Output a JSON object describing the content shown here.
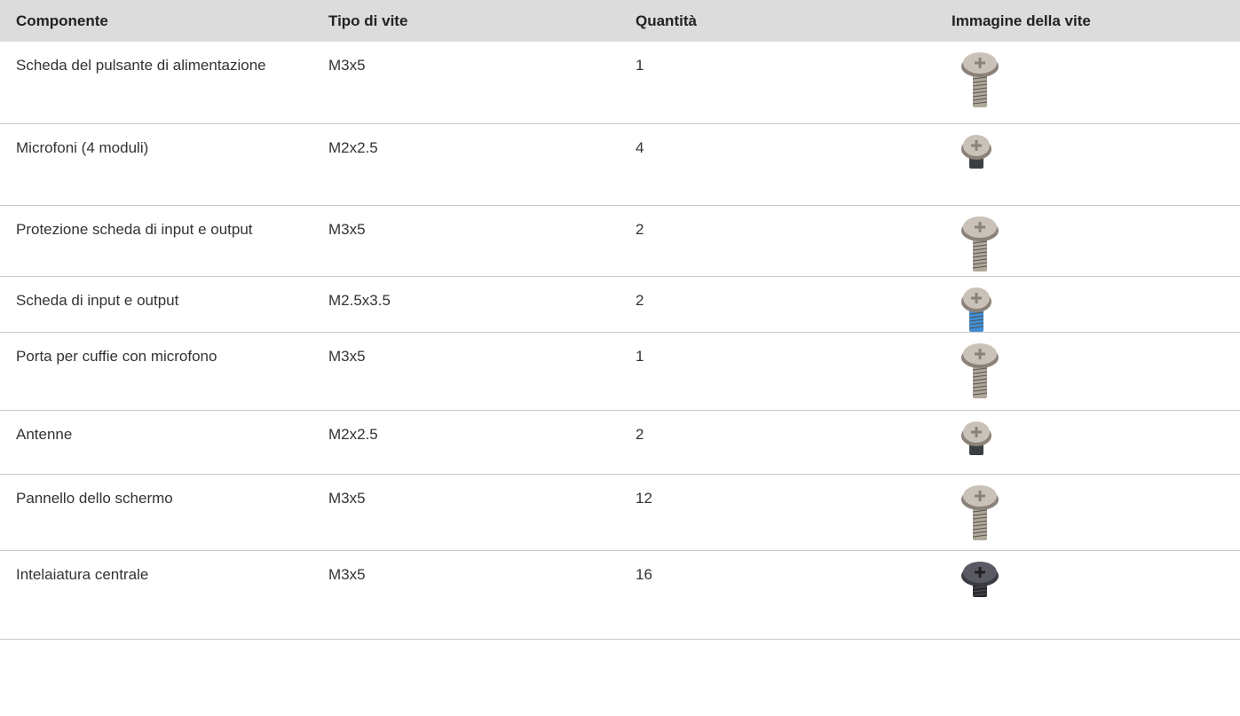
{
  "table": {
    "header": [
      "Componente",
      "Tipo di vite",
      "Quantità",
      "Immagine della vite"
    ],
    "rows": [
      [
        "Scheda del pulsante di alimentazione",
        "M3x5",
        1
      ],
      [
        "Microfoni (4 moduli)",
        "M2x2.5",
        4
      ],
      [
        "Protezione scheda di input e output",
        "M3x5",
        2
      ],
      [
        "Scheda di input e output",
        "M2.5x3.5",
        2
      ],
      [
        "Porta per cuffie con microfono",
        "M3x5",
        1
      ],
      [
        "Antenne",
        "M2x2.5",
        2
      ],
      [
        "Pannello dello schermo",
        "M3x5",
        12
      ],
      [
        "Intelaiatura centrale",
        "M3x5",
        16
      ]
    ]
  }
}
